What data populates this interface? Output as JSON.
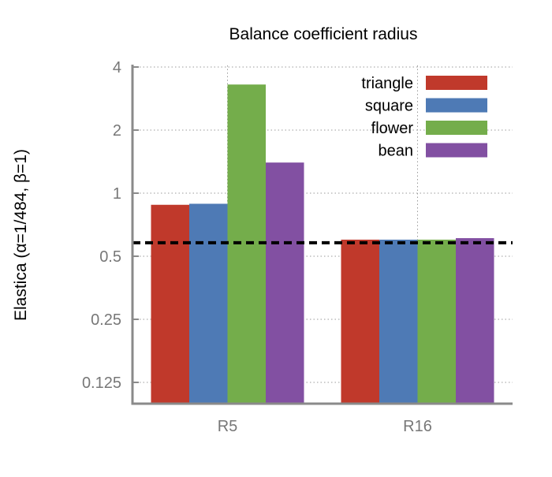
{
  "chart_data": {
    "type": "bar",
    "title": "Balance coefficient radius",
    "xlabel": "",
    "ylabel": "Elastica (α=1/484, β=1)",
    "yscale": "log2",
    "ylim": [
      0.1,
      4.2
    ],
    "yticks": [
      0.125,
      0.25,
      0.5,
      1,
      2,
      4
    ],
    "ytick_labels": [
      "0.125",
      "0.25",
      "0.5",
      "1",
      "2",
      "4"
    ],
    "categories": [
      "R5",
      "R16"
    ],
    "series": [
      {
        "name": "triangle",
        "color": "#c0392b",
        "values": [
          0.88,
          0.6
        ]
      },
      {
        "name": "square",
        "color": "#4e7ab5",
        "values": [
          0.89,
          0.6
        ]
      },
      {
        "name": "flower",
        "color": "#74ad4b",
        "values": [
          3.3,
          0.6
        ]
      },
      {
        "name": "bean",
        "color": "#8250a2",
        "values": [
          1.4,
          0.61
        ]
      }
    ],
    "reference_line": {
      "y": 0.58,
      "style": "dashed",
      "color": "#000000"
    },
    "grid": true,
    "legend_position": "top-right"
  }
}
